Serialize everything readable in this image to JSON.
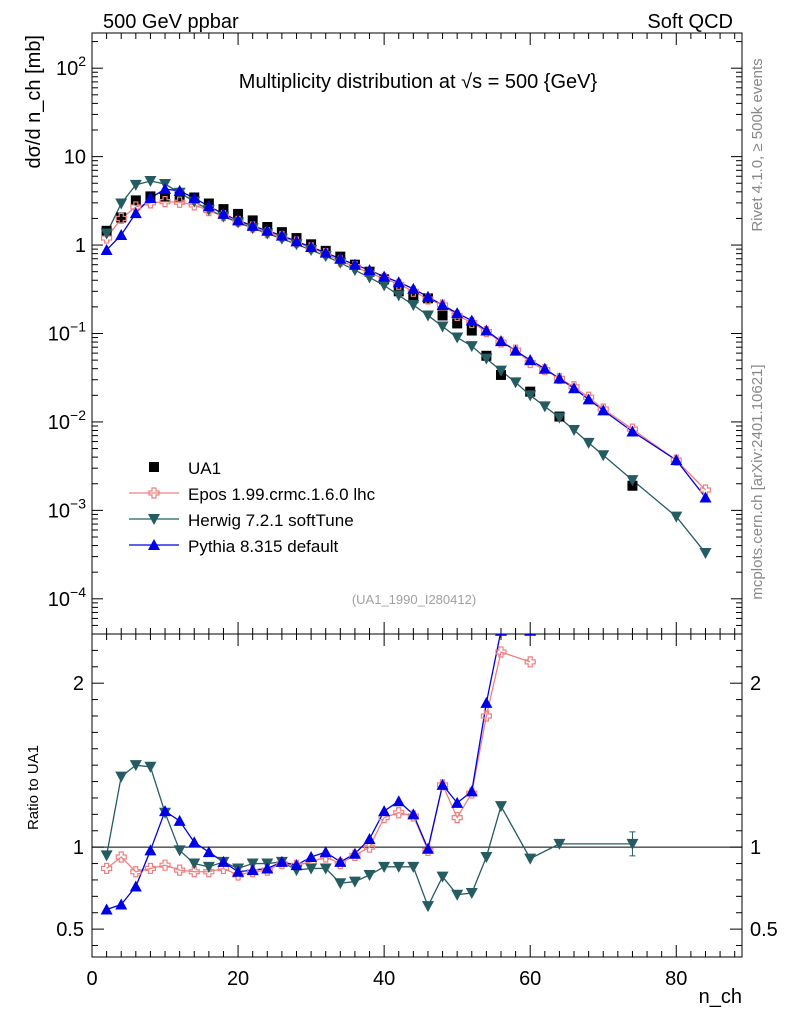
{
  "header": {
    "left": "500 GeV ppbar",
    "right": "Soft QCD"
  },
  "side": {
    "rivet": "Rivet 4.1.0, ≥ 500k events",
    "mcplots": "mcplots.cern.ch [arXiv:2401.10621]"
  },
  "chart_data": {
    "type": "scatter",
    "title": "Multiplicity distribution at √s = 500 {GeV}",
    "analysis_tag": "(UA1_1990_I280412)",
    "xlabel": "n_ch",
    "ylabel": "dσ/d n_ch [mb]",
    "ratio_ylabel": "Ratio to UA1",
    "xlim": [
      0,
      89
    ],
    "ylim_log": [
      4e-05,
      250
    ],
    "ratio_ylim": [
      0.33,
      2.3
    ],
    "x_ticks": [
      "0",
      "20",
      "40",
      "60",
      "80"
    ],
    "ratio_ticks": [
      "0.5",
      "1",
      "2"
    ],
    "main_ticks": [
      {
        "v": 100,
        "base": "10",
        "exp": "2"
      },
      {
        "v": 10,
        "base": "10",
        "exp": ""
      },
      {
        "v": 1,
        "base": "1",
        "exp": ""
      },
      {
        "v": 0.1,
        "base": "10",
        "exp": "−1"
      },
      {
        "v": 0.01,
        "base": "10",
        "exp": "−2"
      },
      {
        "v": 0.001,
        "base": "10",
        "exp": "−3"
      },
      {
        "v": 0.0001,
        "base": "10",
        "exp": "−4"
      }
    ],
    "reference": {
      "name": "UA1",
      "x": [
        2,
        4,
        6,
        8,
        10,
        12,
        14,
        16,
        18,
        20,
        22,
        24,
        26,
        28,
        30,
        32,
        34,
        36,
        38,
        40,
        42,
        44,
        46,
        48,
        50,
        52,
        54,
        56,
        60,
        64,
        74
      ],
      "y": [
        1.45,
        2.05,
        3.2,
        3.55,
        3.55,
        3.55,
        3.45,
        2.95,
        2.55,
        2.25,
        1.9,
        1.6,
        1.4,
        1.2,
        1.02,
        0.86,
        0.74,
        0.6,
        0.5,
        0.41,
        0.3,
        0.25,
        0.25,
        0.16,
        0.13,
        0.108,
        0.056,
        0.034,
        0.022,
        0.0115,
        0.0019
      ]
    },
    "series": [
      {
        "name": "Epos 1.99.crmc.1.6.0 lhc",
        "color": "#f08080",
        "marker": "cross",
        "x": [
          2,
          4,
          6,
          8,
          10,
          12,
          14,
          16,
          18,
          20,
          22,
          24,
          26,
          28,
          30,
          32,
          34,
          36,
          38,
          40,
          42,
          44,
          46,
          48,
          50,
          52,
          54,
          56,
          58,
          60,
          62,
          64,
          66,
          68,
          70,
          74,
          80,
          84
        ],
        "y": [
          1.2,
          2.0,
          2.7,
          3.0,
          3.1,
          3.05,
          2.85,
          2.45,
          2.15,
          1.85,
          1.6,
          1.38,
          1.25,
          1.08,
          0.93,
          0.8,
          0.66,
          0.57,
          0.48,
          0.42,
          0.36,
          0.3,
          0.245,
          0.21,
          0.16,
          0.133,
          0.105,
          0.08,
          0.065,
          0.047,
          0.039,
          0.031,
          0.025,
          0.019,
          0.014,
          0.0083,
          0.0037,
          0.0017
        ],
        "ratio_x": [
          2,
          4,
          6,
          8,
          10,
          12,
          14,
          16,
          18,
          20,
          22,
          24,
          26,
          28,
          30,
          32,
          34,
          36,
          38,
          40,
          42,
          44,
          46,
          48,
          50,
          52,
          54,
          56,
          60
        ],
        "ratio": [
          0.87,
          0.94,
          0.85,
          0.87,
          0.89,
          0.86,
          0.85,
          0.85,
          0.87,
          0.83,
          0.85,
          0.86,
          0.9,
          0.89,
          0.91,
          0.94,
          0.9,
          0.95,
          1.0,
          1.18,
          1.21,
          1.19,
          0.98,
          1.38,
          1.18,
          1.33,
          1.8,
          2.19,
          2.13
        ]
      },
      {
        "name": "Herwig 7.2.1 softTune",
        "color": "#255c62",
        "marker": "triangle-down",
        "x": [
          2,
          4,
          6,
          8,
          10,
          12,
          14,
          16,
          18,
          20,
          22,
          24,
          26,
          28,
          30,
          32,
          34,
          36,
          38,
          40,
          42,
          44,
          46,
          48,
          50,
          52,
          54,
          56,
          58,
          60,
          62,
          64,
          66,
          68,
          70,
          74,
          80,
          84
        ],
        "y": [
          1.35,
          2.95,
          4.8,
          5.3,
          4.9,
          3.9,
          3.1,
          2.5,
          2.1,
          1.8,
          1.55,
          1.35,
          1.18,
          1.02,
          0.88,
          0.75,
          0.63,
          0.52,
          0.43,
          0.35,
          0.27,
          0.21,
          0.16,
          0.12,
          0.09,
          0.072,
          0.052,
          0.038,
          0.028,
          0.02,
          0.015,
          0.0112,
          0.0081,
          0.0058,
          0.0042,
          0.0022,
          0.00085,
          0.00033
        ],
        "ratio_x": [
          2,
          4,
          6,
          8,
          10,
          12,
          14,
          16,
          18,
          20,
          22,
          24,
          26,
          28,
          30,
          32,
          34,
          36,
          38,
          40,
          42,
          44,
          46,
          48,
          50,
          52,
          54,
          56,
          60,
          64,
          74
        ],
        "ratio": [
          0.95,
          1.43,
          1.5,
          1.49,
          1.21,
          0.98,
          0.9,
          0.88,
          0.91,
          0.87,
          0.9,
          0.9,
          0.91,
          0.86,
          0.87,
          0.87,
          0.78,
          0.79,
          0.83,
          0.88,
          0.88,
          0.88,
          0.64,
          0.82,
          0.71,
          0.72,
          0.94,
          1.25,
          0.93,
          1.02,
          1.02
        ]
      },
      {
        "name": "Pythia 8.315 default",
        "color": "#0000e6",
        "marker": "triangle-up",
        "x": [
          2,
          4,
          6,
          8,
          10,
          12,
          14,
          16,
          18,
          20,
          22,
          24,
          26,
          28,
          30,
          32,
          34,
          36,
          38,
          40,
          42,
          44,
          46,
          48,
          50,
          52,
          54,
          56,
          58,
          60,
          62,
          64,
          66,
          68,
          70,
          74,
          80,
          84
        ],
        "y": [
          0.88,
          1.3,
          2.3,
          3.4,
          4.3,
          4.1,
          3.4,
          2.75,
          2.25,
          1.9,
          1.65,
          1.45,
          1.28,
          1.1,
          0.95,
          0.82,
          0.7,
          0.6,
          0.52,
          0.44,
          0.38,
          0.32,
          0.26,
          0.21,
          0.17,
          0.14,
          0.108,
          0.082,
          0.064,
          0.05,
          0.04,
          0.031,
          0.024,
          0.018,
          0.0135,
          0.0078,
          0.0037,
          0.0014
        ],
        "ratio_x": [
          2,
          4,
          6,
          8,
          10,
          12,
          14,
          16,
          18,
          20,
          22,
          24,
          26,
          28,
          30,
          32,
          34,
          36,
          38,
          40,
          42,
          44,
          46,
          48,
          50,
          52,
          54,
          56,
          60
        ],
        "ratio": [
          0.62,
          0.65,
          0.76,
          0.98,
          1.22,
          1.16,
          1.03,
          0.97,
          0.91,
          0.85,
          0.86,
          0.87,
          0.91,
          0.89,
          0.94,
          0.97,
          0.91,
          0.96,
          1.05,
          1.22,
          1.28,
          1.2,
          0.99,
          1.38,
          1.27,
          1.34,
          1.88,
          2.32,
          2.32
        ]
      }
    ]
  }
}
